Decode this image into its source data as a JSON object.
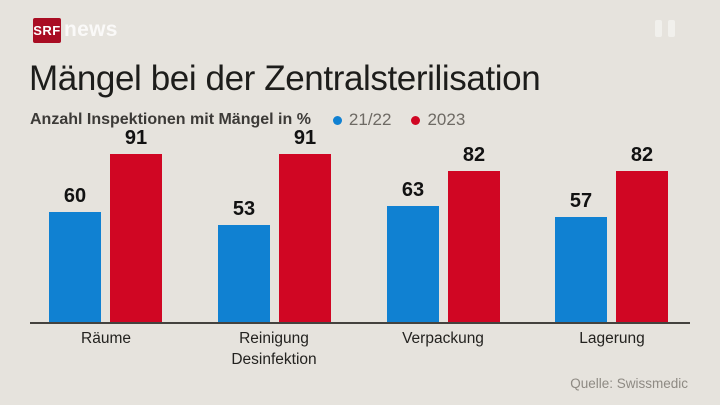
{
  "header": {
    "logo_text": "SRF",
    "brand_suffix": "news"
  },
  "title": "Mängel bei der Zentralsterilisation",
  "subtitle": "Anzahl Inspektionen mit Mängel in %",
  "source": "Quelle: Swissmedic",
  "colors": {
    "background": "#e6e3dd",
    "logo_red": "#a90d23",
    "series_blue": "#1081d2",
    "series_red": "#d00623",
    "axis": "#44423e",
    "title_text": "#1d1d1b",
    "legend_text": "#6e6a64",
    "source_text": "#8e8a83"
  },
  "chart_data": {
    "type": "bar",
    "title": "Mängel bei der Zentralsterilisation",
    "subtitle": "Anzahl Inspektionen mit Mängel in %",
    "categories": [
      "Räume",
      "Reinigung\nDesinfektion",
      "Verpackung",
      "Lagerung"
    ],
    "series": [
      {
        "name": "21/22",
        "color": "#1081d2",
        "values": [
          60,
          53,
          63,
          57
        ]
      },
      {
        "name": "2023",
        "color": "#d00623",
        "values": [
          91,
          91,
          82,
          82
        ]
      }
    ],
    "xlabel": "",
    "ylabel": "Anzahl Inspektionen mit Mängel in %",
    "ylim": [
      0,
      100
    ],
    "grid": false,
    "legend_position": "top",
    "value_labels": true,
    "source": "Quelle: Swissmedic"
  }
}
